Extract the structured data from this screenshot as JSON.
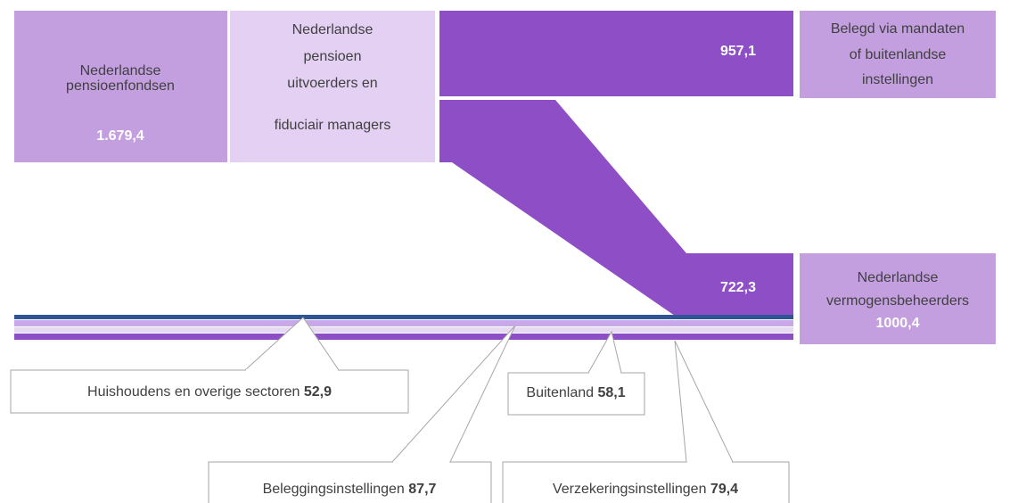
{
  "nodes": [
    {
      "lines": [
        "Nederlandse",
        "pensioenfondsen"
      ],
      "value": "1.679,4"
    },
    {
      "lines": [
        "Nederlandse",
        "pensioen",
        "uitvoerders en",
        "fiduciair managers"
      ]
    },
    {
      "lines": [
        "Belegd via mandaten",
        "of buitenlandse",
        "instellingen"
      ],
      "value": "957,1"
    },
    {
      "lines": [
        "Nederlandse",
        "vermogensbeheerders"
      ],
      "value": "1000,4",
      "flow_value": "722,3"
    }
  ],
  "callouts": [
    {
      "label": "Huishoudens en overige sectoren",
      "value": "52,9"
    },
    {
      "label": "Buitenland",
      "value": "58,1"
    },
    {
      "label": "Beleggingsinstellingen",
      "value": "87,7"
    },
    {
      "label": "Verzekeringsinstellingen",
      "value": "79,4"
    }
  ]
}
